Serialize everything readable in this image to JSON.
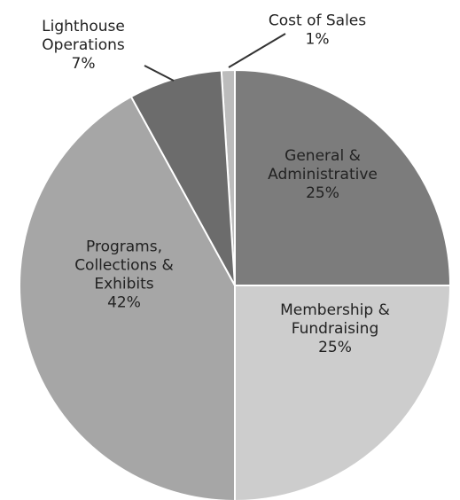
{
  "chart_data": {
    "type": "pie",
    "title": "",
    "categories": [
      "Cost of Sales",
      "General & Administrative",
      "Membership & Fundraising",
      "Programs, Collections & Exhibits",
      "Lighthouse Operations"
    ],
    "values": [
      1,
      25,
      25,
      42,
      7
    ],
    "labels": [
      {
        "lines": [
          "Cost of Sales"
        ],
        "pct": "1%"
      },
      {
        "lines": [
          "General &",
          "Administrative"
        ],
        "pct": "25%"
      },
      {
        "lines": [
          "Membership &",
          "Fundraising"
        ],
        "pct": "25%"
      },
      {
        "lines": [
          "Programs,",
          "Collections &",
          "Exhibits"
        ],
        "pct": "42%"
      },
      {
        "lines": [
          "Lighthouse",
          "Operations"
        ],
        "pct": "7%"
      }
    ],
    "colors": [
      "#bcbcbc",
      "#7c7c7c",
      "#cdcdcd",
      "#a6a6a6",
      "#6c6c6c"
    ],
    "start_angle_deg": -3.6,
    "direction": "clockwise",
    "legend": "none"
  }
}
